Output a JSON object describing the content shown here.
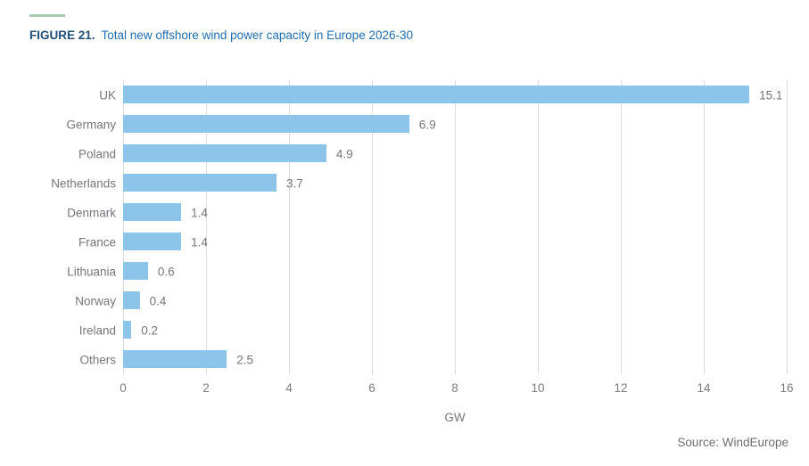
{
  "figure": {
    "label": "FIGURE 21.",
    "title": "Total new offshore wind power capacity in Europe 2026-30"
  },
  "source_note": "Source: WindEurope",
  "colors": {
    "bar": "#8CC4EA",
    "gridline": "#DCDCDC",
    "text_gray": "#75767A",
    "figure_label_blue": "#1F4E79",
    "figure_title_blue": "#1F6CB0",
    "accent_green": "#A6CDAD"
  },
  "chart_data": {
    "type": "bar",
    "orientation": "horizontal",
    "title": "Total new offshore wind power capacity in Europe 2026-30",
    "categories": [
      "UK",
      "Germany",
      "Poland",
      "Netherlands",
      "Denmark",
      "France",
      "Lithuania",
      "Norway",
      "Ireland",
      "Others"
    ],
    "values": [
      15.1,
      6.9,
      4.9,
      3.7,
      1.4,
      1.4,
      0.6,
      0.4,
      0.2,
      2.5
    ],
    "value_labels": [
      "15.1",
      "6.9",
      "4.9",
      "3.7",
      "1.4",
      "1.4",
      "0.6",
      "0.4",
      "0.2",
      "2.5"
    ],
    "xlabel": "GW",
    "ylabel": "",
    "xlim": [
      0,
      16
    ],
    "xticks": [
      "0",
      "2",
      "4",
      "6",
      "8",
      "10",
      "12",
      "14",
      "16"
    ],
    "grid": true,
    "legend": false
  }
}
